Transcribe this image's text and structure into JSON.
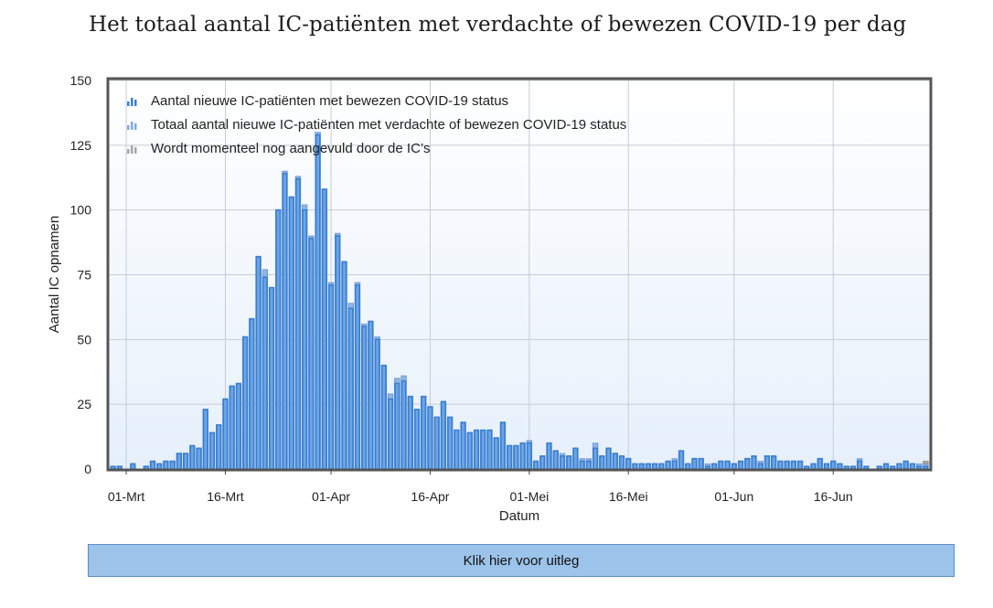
{
  "title": "Het totaal aantal IC-patiënten met verdachte of bewezen COVID-19 per dag",
  "button_label": "Klik hier voor uitleg",
  "colors": {
    "confirmed": "#3b7dd0",
    "suspected": "#8fb5e0",
    "pending": "#a8a8a8",
    "plot_bg_top": "#ffffff",
    "plot_bg_bottom": "#e8f1fb",
    "frame": "#555555",
    "button_bg": "#9cc3ea"
  },
  "chart_data": {
    "type": "bar",
    "xlabel": "Datum",
    "ylabel": "Aantal IC opnamen",
    "ylim": [
      0,
      150
    ],
    "y_ticks": [
      0,
      25,
      50,
      75,
      100,
      125,
      150
    ],
    "x_tick_labels": [
      {
        "date": "2020-03-01",
        "label": "01-Mrt"
      },
      {
        "date": "2020-03-16",
        "label": "16-Mrt"
      },
      {
        "date": "2020-04-01",
        "label": "01-Apr"
      },
      {
        "date": "2020-04-16",
        "label": "16-Apr"
      },
      {
        "date": "2020-05-01",
        "label": "01-Mei"
      },
      {
        "date": "2020-05-16",
        "label": "16-Mei"
      },
      {
        "date": "2020-06-01",
        "label": "01-Jun"
      },
      {
        "date": "2020-06-16",
        "label": "16-Jun"
      }
    ],
    "grid": true,
    "legend_position": "top-left",
    "x_start": "2020-02-28",
    "x_end": "2020-06-30",
    "series": [
      {
        "name": "Aantal nieuwe IC-patiënten met bewezen COVID-19 status",
        "color": "#3b7dd0",
        "values": [
          1,
          1,
          0,
          2,
          0,
          1,
          3,
          2,
          3,
          3,
          6,
          6,
          9,
          8,
          23,
          14,
          17,
          27,
          32,
          33,
          51,
          58,
          82,
          74,
          70,
          100,
          114,
          105,
          112,
          100,
          89,
          129,
          108,
          71,
          90,
          80,
          62,
          71,
          55,
          57,
          50,
          40,
          27,
          33,
          34,
          28,
          23,
          28,
          24,
          20,
          26,
          20,
          15,
          18,
          14,
          15,
          15,
          15,
          12,
          18,
          9,
          9,
          10,
          10,
          3,
          5,
          10,
          7,
          5,
          5,
          8,
          3,
          3,
          8,
          5,
          8,
          6,
          5,
          4,
          2,
          2,
          2,
          2,
          2,
          3,
          3,
          7,
          2,
          4,
          4,
          1,
          2,
          3,
          3,
          2,
          3,
          4,
          5,
          2,
          5,
          5,
          3,
          3,
          3,
          3,
          1,
          2,
          4,
          2,
          3,
          2,
          1,
          1,
          3,
          1,
          0,
          1,
          2,
          1,
          2,
          3,
          2,
          1,
          1,
          1,
          1,
          0,
          0
        ]
      },
      {
        "name": "Totaal aantal nieuwe IC-patiënten met verdachte of bewezen COVID-19 status",
        "color": "#8fb5e0",
        "values": [
          1,
          1,
          0,
          2,
          0,
          1,
          3,
          2,
          3,
          3,
          6,
          6,
          9,
          8,
          23,
          14,
          17,
          27,
          32,
          33,
          51,
          58,
          82,
          77,
          70,
          100,
          115,
          105,
          113,
          102,
          90,
          130,
          108,
          72,
          91,
          80,
          64,
          72,
          56,
          57,
          51,
          40,
          29,
          35,
          36,
          28,
          23,
          28,
          24,
          20,
          26,
          20,
          15,
          18,
          14,
          15,
          15,
          15,
          12,
          18,
          9,
          9,
          10,
          11,
          3,
          5,
          10,
          7,
          6,
          5,
          8,
          4,
          4,
          10,
          5,
          8,
          6,
          5,
          4,
          2,
          2,
          2,
          2,
          2,
          3,
          4,
          7,
          2,
          4,
          4,
          2,
          2,
          3,
          3,
          2,
          3,
          4,
          5,
          3,
          5,
          5,
          3,
          3,
          3,
          3,
          1,
          2,
          4,
          2,
          3,
          2,
          1,
          1,
          4,
          1,
          0,
          1,
          2,
          1,
          2,
          3,
          2,
          2,
          2,
          1,
          1,
          0,
          0
        ]
      },
      {
        "name": "Wordt momenteel nog aangevuld door de IC’s",
        "color": "#a8a8a8",
        "values": [
          0,
          0,
          0,
          0,
          0,
          0,
          0,
          0,
          0,
          0,
          0,
          0,
          0,
          0,
          0,
          0,
          0,
          0,
          0,
          0,
          0,
          0,
          0,
          0,
          0,
          0,
          0,
          0,
          0,
          0,
          0,
          0,
          0,
          0,
          0,
          0,
          0,
          0,
          0,
          0,
          0,
          0,
          0,
          0,
          0,
          0,
          0,
          0,
          0,
          0,
          0,
          0,
          0,
          0,
          0,
          0,
          0,
          0,
          0,
          0,
          0,
          0,
          0,
          0,
          0,
          0,
          0,
          0,
          0,
          0,
          0,
          0,
          0,
          0,
          0,
          0,
          0,
          0,
          0,
          0,
          0,
          0,
          0,
          0,
          0,
          0,
          0,
          0,
          0,
          0,
          0,
          0,
          0,
          0,
          0,
          0,
          0,
          0,
          0,
          0,
          0,
          0,
          0,
          0,
          0,
          0,
          0,
          0,
          0,
          0,
          0,
          0,
          0,
          0,
          0,
          0,
          0,
          0,
          0,
          0,
          0,
          0,
          0,
          1,
          1,
          2,
          2,
          2
        ]
      }
    ]
  }
}
